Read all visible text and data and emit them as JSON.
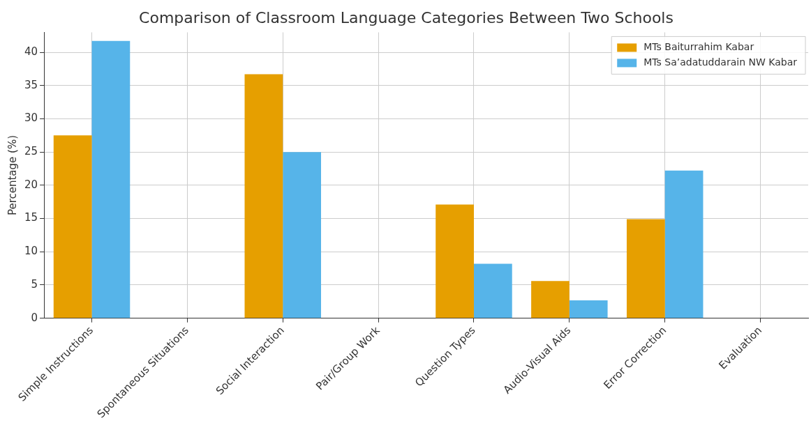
{
  "chart_data": {
    "type": "bar",
    "title": "Comparison of Classroom Language Categories Between Two Schools",
    "ylabel": "Percentage (%)",
    "categories": [
      "Simple Instructions",
      "Spontaneous Situations",
      "Social Interaction",
      "Pair/Group Work",
      "Question Types",
      "Audio-Visual Aids",
      "Error Correction",
      "Evaluation"
    ],
    "series": [
      {
        "name": "MTs Baiturrahim Kabar",
        "color": "#e69f00",
        "values": [
          27.5,
          0,
          36.7,
          0,
          17.1,
          5.6,
          14.9,
          0
        ]
      },
      {
        "name": "MTs Sa’adatuddarain NW Kabar",
        "color": "#56b4e9",
        "values": [
          41.7,
          0,
          25.0,
          0,
          8.2,
          2.7,
          22.2,
          0
        ]
      }
    ],
    "ylim": [
      0,
      43
    ],
    "yticks": [
      0,
      5,
      10,
      15,
      20,
      25,
      30,
      35,
      40
    ],
    "grid": true,
    "legend": "top right"
  }
}
